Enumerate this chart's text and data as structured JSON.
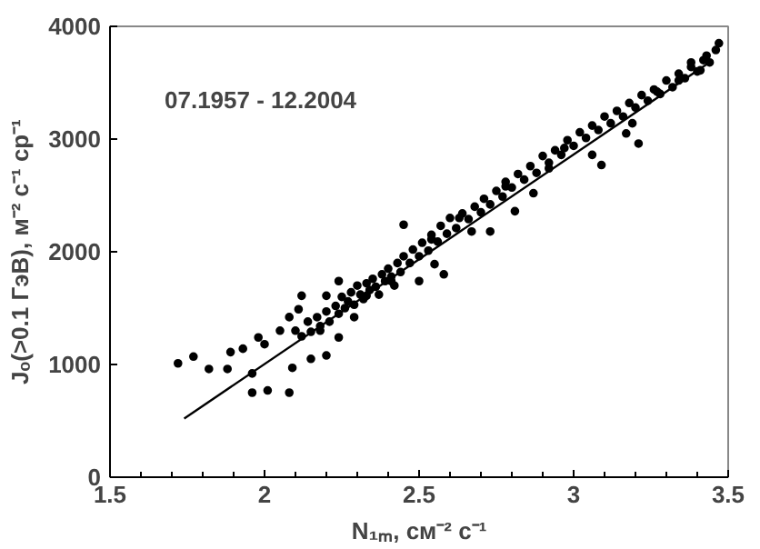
{
  "chart_data": {
    "type": "scatter",
    "xlabel": "N₁ₘ, см⁻² с⁻¹",
    "ylabel": "Jₒ(>0.1 ГэВ), м⁻² с⁻¹ ср⁻¹",
    "annotations": [
      "07.1957 - 12.2004"
    ],
    "xlim": [
      1.5,
      3.5
    ],
    "ylim": [
      0,
      4000
    ],
    "xticks": [
      1.5,
      2,
      2.5,
      3,
      3.5
    ],
    "yticks": [
      0,
      1000,
      2000,
      3000,
      4000
    ],
    "grid": false,
    "marker": "circle",
    "series": [
      {
        "color": "#000000",
        "x": [
          1.72,
          1.77,
          1.82,
          1.88,
          1.89,
          1.93,
          1.96,
          1.96,
          2.01,
          2.08,
          2.09,
          1.98,
          2.0,
          2.05,
          2.08,
          2.11,
          2.15,
          2.2,
          2.18,
          2.12,
          2.2,
          2.24,
          2.29,
          2.24,
          2.33,
          2.41,
          2.45,
          2.5,
          2.55,
          2.58,
          2.54,
          2.63,
          2.67,
          2.73,
          2.78,
          2.81,
          2.87,
          2.92,
          2.97,
          3.06,
          3.09,
          3.17,
          3.19,
          3.21,
          3.27,
          3.34,
          3.38,
          3.43,
          3.47,
          3.41,
          2.1,
          2.12,
          2.14,
          2.15,
          2.17,
          2.18,
          2.2,
          2.21,
          2.23,
          2.24,
          2.25,
          2.26,
          2.27,
          2.28,
          2.29,
          2.3,
          2.31,
          2.32,
          2.33,
          2.34,
          2.35,
          2.36,
          2.37,
          2.38,
          2.39,
          2.4,
          2.41,
          2.42,
          2.43,
          2.44,
          2.45,
          2.47,
          2.48,
          2.5,
          2.51,
          2.53,
          2.54,
          2.56,
          2.57,
          2.59,
          2.6,
          2.62,
          2.64,
          2.66,
          2.68,
          2.7,
          2.71,
          2.73,
          2.75,
          2.77,
          2.78,
          2.8,
          2.82,
          2.84,
          2.86,
          2.88,
          2.9,
          2.92,
          2.94,
          2.96,
          2.98,
          3.0,
          3.02,
          3.04,
          3.06,
          3.08,
          3.1,
          3.12,
          3.14,
          3.16,
          3.18,
          3.2,
          3.22,
          3.24,
          3.26,
          3.28,
          3.3,
          3.32,
          3.34,
          3.36,
          3.38,
          3.4,
          3.42,
          3.44,
          3.46
        ],
        "values": [
          1010,
          1070,
          960,
          960,
          1110,
          1140,
          920,
          750,
          770,
          750,
          970,
          1240,
          1180,
          1300,
          1420,
          1490,
          1050,
          1080,
          1300,
          1610,
          1610,
          1740,
          1420,
          1240,
          1610,
          1740,
          2240,
          1740,
          1890,
          1800,
          2110,
          2300,
          2180,
          2180,
          2580,
          2360,
          2520,
          2740,
          2920,
          2860,
          2770,
          3050,
          3140,
          2960,
          3420,
          3520,
          3680,
          3740,
          3850,
          3610,
          1300,
          1250,
          1380,
          1290,
          1420,
          1340,
          1470,
          1380,
          1520,
          1450,
          1600,
          1500,
          1560,
          1640,
          1530,
          1700,
          1620,
          1580,
          1720,
          1660,
          1760,
          1690,
          1620,
          1800,
          1740,
          1850,
          1780,
          1700,
          1900,
          1820,
          1960,
          1900,
          2020,
          1960,
          2080,
          2010,
          2150,
          2090,
          2230,
          2160,
          2300,
          2210,
          2340,
          2290,
          2400,
          2350,
          2470,
          2420,
          2540,
          2490,
          2620,
          2570,
          2690,
          2640,
          2760,
          2700,
          2850,
          2790,
          2900,
          2860,
          2990,
          2940,
          3060,
          3010,
          3120,
          3080,
          3200,
          3140,
          3250,
          3200,
          3320,
          3280,
          3390,
          3340,
          3440,
          3400,
          3520,
          3460,
          3580,
          3540,
          3640,
          3600,
          3700,
          3680,
          3790
        ]
      },
      {
        "type": "line",
        "color": "#000000",
        "marker": "none",
        "x": [
          1.74,
          3.45
        ],
        "values": [
          520,
          3700
        ]
      }
    ]
  }
}
